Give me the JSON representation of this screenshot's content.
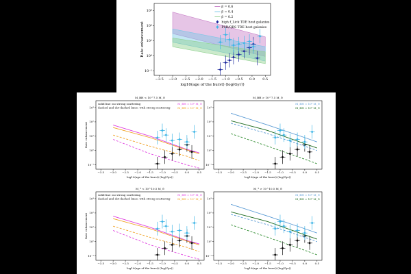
{
  "figure": {
    "background": "#000000",
    "panel_background": "#ffffff"
  },
  "chart_data": [
    {
      "id": "top",
      "type": "line",
      "title": "",
      "xlabel": "log10(age of the burst) (log(Gyr))",
      "ylabel": "Rate enhancement",
      "xlim": [
        -3.7,
        0.7
      ],
      "ylim": [
        0.05,
        3000
      ],
      "yscale": "log",
      "xticks": [
        -3.5,
        -3.0,
        -2.5,
        -2.0,
        -1.5,
        -1.0,
        -0.5,
        0.0,
        0.5
      ],
      "xtick_labels": [
        "−3.5",
        "−3.0",
        "−2.5",
        "−2.0",
        "−1.5",
        "−1.0",
        "−0.5",
        "0.0",
        "0.5"
      ],
      "yticks": [
        0.1,
        1,
        10,
        100,
        1000
      ],
      "ytick_labels": [
        "10⁻¹",
        "10⁰",
        "10¹",
        "10²",
        "10³"
      ],
      "legend": {
        "placement": "top-right",
        "entries": [
          "β = 0.6",
          "β = 0.4",
          "β = 0.2",
          "high f_Lick TDE host galaxies",
          "PSB/QBS TDE host galaxies"
        ]
      },
      "bands": [
        {
          "name": "β = 0.6",
          "color": "#c77fc7",
          "x": [
            -3.0,
            0.5
          ],
          "lower": [
            30,
            0.9
          ],
          "upper": [
            800,
            18
          ]
        },
        {
          "name": "β = 0.4",
          "color": "#79c7e6",
          "x": [
            -3.0,
            0.5
          ],
          "lower": [
            8,
            0.45
          ],
          "upper": [
            60,
            4
          ]
        },
        {
          "name": "β = 0.2",
          "color": "#8fd08f",
          "x": [
            -3.0,
            0.5
          ],
          "lower": [
            4,
            0.3
          ],
          "upper": [
            15,
            1.8
          ]
        }
      ],
      "series": [
        {
          "name": "high f_Lick TDE host galaxies",
          "marker": "diamond",
          "color": "#1f2a9e",
          "x": [
            -1.2,
            -1.0,
            -0.85,
            -0.7,
            -0.5,
            -0.3,
            -0.1,
            0.05,
            0.2
          ],
          "y": [
            0.12,
            0.35,
            0.5,
            0.8,
            1.2,
            2,
            3.5,
            6,
            0.7
          ]
        },
        {
          "name": "PSB/QBS TDE host galaxies",
          "marker": "diamond",
          "color": "#3fb6e6",
          "x": [
            -1.2,
            -1.0,
            -0.85,
            -0.7,
            -0.5,
            -0.3,
            -0.1,
            0.05,
            0.3
          ],
          "y": [
            8,
            25,
            12,
            5,
            6,
            7,
            9,
            4,
            20
          ]
        }
      ]
    },
    {
      "id": "mid-left",
      "type": "line",
      "title": "M_BH < 10^7.5 M_⊙",
      "xlabel": "log10(age of the burst) (log(Gyr))",
      "ylabel": "Rate enhancement",
      "xlim": [
        -3.7,
        0.7
      ],
      "ylim": [
        0.05,
        3000
      ],
      "yscale": "log",
      "xticks": [
        -3.5,
        -3.0,
        -2.5,
        -2.0,
        -1.5,
        -1.0,
        -0.5,
        0.0,
        0.5
      ],
      "xtick_labels": [
        "−3.5",
        "−3.0",
        "−2.5",
        "−2.0",
        "−1.5",
        "−1.0",
        "−0.5",
        "0.0",
        "0.5"
      ],
      "yticks": [
        0.1,
        1,
        10,
        100,
        1000
      ],
      "ytick_labels": [
        "10⁻¹",
        "10⁰",
        "10¹",
        "10²",
        "10³"
      ],
      "annotations": [
        "solid line: no strong scattering",
        "dashed and dot-dashed lines: with strong scattering"
      ],
      "legend": {
        "placement": "top-right",
        "entries": [
          "M_BH = 10⁶ M_⊙",
          "M_BH = 10⁷ M_⊙"
        ]
      },
      "lines": [
        {
          "name": "10⁶ solid",
          "color": "#e040e0",
          "style": "solid",
          "x": [
            -3.0,
            -1.5,
            0.0,
            0.5
          ],
          "y": [
            60,
            10,
            1.2,
            0.7
          ]
        },
        {
          "name": "10⁶ dashed",
          "color": "#e040e0",
          "style": "dashed",
          "x": [
            -3.0,
            -1.5,
            0.0,
            0.5
          ],
          "y": [
            6,
            0.6,
            0.1,
            0.06
          ]
        },
        {
          "name": "10⁷ solid",
          "color": "#f0a020",
          "style": "solid",
          "x": [
            -3.0,
            -1.5,
            0.0,
            0.5
          ],
          "y": [
            40,
            8,
            1.1,
            0.6
          ]
        },
        {
          "name": "10⁷ dashed",
          "color": "#f0a020",
          "style": "dashed",
          "x": [
            -3.0,
            -1.5,
            0.0,
            0.5
          ],
          "y": [
            12,
            2,
            0.4,
            0.2
          ]
        }
      ],
      "series": [
        {
          "name": "high f_Lick",
          "color": "#111111",
          "x": [
            -1.2,
            -0.9,
            -0.6,
            -0.3,
            0.0,
            0.2
          ],
          "y": [
            0.12,
            0.35,
            0.6,
            1.2,
            2.5,
            0.8
          ]
        },
        {
          "name": "PSB/QBS",
          "color": "#3fb6e6",
          "x": [
            -1.2,
            -1.0,
            -0.85,
            -0.6,
            -0.3,
            0.0,
            0.3
          ],
          "y": [
            8,
            25,
            12,
            5,
            6,
            4,
            20
          ]
        }
      ]
    },
    {
      "id": "mid-right",
      "type": "line",
      "title": "M_BH > 10^7.5 M_⊙",
      "xlabel": "log10(age of the burst) (log(Gyr))",
      "ylabel": "",
      "xlim": [
        -3.7,
        0.7
      ],
      "ylim": [
        0.05,
        3000
      ],
      "yscale": "log",
      "xticks": [
        -3.5,
        -3.0,
        -2.5,
        -2.0,
        -1.5,
        -1.0,
        -0.5,
        0.0,
        0.5
      ],
      "xtick_labels": [
        "−3.5",
        "−3.0",
        "−2.5",
        "−2.0",
        "−1.5",
        "−1.0",
        "−0.5",
        "0.0",
        "0.5"
      ],
      "yticks": [
        0.1,
        1,
        10,
        100,
        1000
      ],
      "ytick_labels": [
        "10⁻¹",
        "10⁰",
        "10¹",
        "10²",
        "10³"
      ],
      "legend": {
        "placement": "top-right",
        "entries": [
          "M_BH = 10⁸ M_⊙",
          "M_BH = 10⁹ M_⊙"
        ]
      },
      "lines": [
        {
          "name": "10⁸ solid",
          "color": "#5b9bd5",
          "style": "solid",
          "x": [
            -3.0,
            -1.5,
            0.0,
            0.5
          ],
          "y": [
            400,
            60,
            8,
            4
          ]
        },
        {
          "name": "10⁸ dashed",
          "color": "#5b9bd5",
          "style": "dashed",
          "x": [
            -3.0,
            -1.5,
            0.0,
            0.5
          ],
          "y": [
            80,
            15,
            2,
            1
          ]
        },
        {
          "name": "10⁹ solid",
          "color": "#1e6b1e",
          "style": "solid",
          "x": [
            -3.0,
            -1.5,
            0.0,
            0.5
          ],
          "y": [
            120,
            25,
            3,
            1.5
          ]
        },
        {
          "name": "10⁹ dashed",
          "color": "#2e8b2e",
          "style": "dashed",
          "x": [
            -3.0,
            -1.5,
            0.0,
            0.5
          ],
          "y": [
            15,
            2,
            0.25,
            0.12
          ]
        }
      ],
      "series": [
        {
          "name": "high f_Lick",
          "color": "#111111",
          "x": [
            -1.2,
            -0.9,
            -0.6,
            -0.3,
            0.0,
            0.2
          ],
          "y": [
            0.12,
            0.35,
            0.6,
            1.2,
            2.5,
            0.8
          ]
        },
        {
          "name": "PSB/QBS",
          "color": "#3fb6e6",
          "x": [
            -1.2,
            -1.0,
            -0.85,
            -0.6,
            -0.3,
            0.0,
            0.3
          ],
          "y": [
            8,
            25,
            12,
            5,
            6,
            4,
            20
          ]
        }
      ]
    },
    {
      "id": "bot-left",
      "type": "line",
      "title": "M_* < 10^10.5 M_⊙",
      "xlabel": "log10(age of the burst) (log(Gyr))",
      "ylabel": "Rate enhancement",
      "xlim": [
        -3.7,
        0.7
      ],
      "ylim": [
        0.05,
        3000
      ],
      "yscale": "log",
      "xticks": [
        -3.5,
        -3.0,
        -2.5,
        -2.0,
        -1.5,
        -1.0,
        -0.5,
        0.0,
        0.5
      ],
      "xtick_labels": [
        "−3.5",
        "−3.0",
        "−2.5",
        "−2.0",
        "−1.5",
        "−1.0",
        "−0.5",
        "0.0",
        "0.5"
      ],
      "yticks": [
        0.1,
        1,
        10,
        100,
        1000
      ],
      "ytick_labels": [
        "10⁻¹",
        "10⁰",
        "10¹",
        "10²",
        "10³"
      ],
      "annotations": [
        "solid line: no strong scattering",
        "dashed and dot-dashed lines: with strong scattering"
      ],
      "legend": {
        "placement": "top-right",
        "entries": [
          "M_BH = 10⁶ M_⊙",
          "M_BH = 10⁷ M_⊙"
        ]
      },
      "lines": [
        {
          "name": "10⁶ solid",
          "color": "#e040e0",
          "style": "solid",
          "x": [
            -3.0,
            -1.5,
            0.0,
            0.5
          ],
          "y": [
            60,
            10,
            1.2,
            0.7
          ]
        },
        {
          "name": "10⁶ dashed",
          "color": "#e040e0",
          "style": "dashed",
          "x": [
            -3.0,
            -1.5,
            0.0,
            0.5
          ],
          "y": [
            6,
            0.6,
            0.1,
            0.06
          ]
        },
        {
          "name": "10⁷ solid",
          "color": "#f0a020",
          "style": "solid",
          "x": [
            -3.0,
            -1.5,
            0.0,
            0.5
          ],
          "y": [
            40,
            8,
            1.1,
            0.6
          ]
        },
        {
          "name": "10⁷ dashed",
          "color": "#f0a020",
          "style": "dashed",
          "x": [
            -3.0,
            -1.5,
            0.0,
            0.5
          ],
          "y": [
            12,
            2,
            0.4,
            0.2
          ]
        }
      ],
      "series": [
        {
          "name": "high f_Lick",
          "color": "#111111",
          "x": [
            -1.2,
            -0.9,
            -0.6,
            -0.3,
            0.0,
            0.2
          ],
          "y": [
            0.12,
            0.35,
            0.6,
            1.2,
            2.5,
            0.8
          ]
        },
        {
          "name": "PSB/QBS",
          "color": "#3fb6e6",
          "x": [
            -1.2,
            -1.0,
            -0.85,
            -0.6,
            -0.3,
            0.0,
            0.3
          ],
          "y": [
            8,
            25,
            12,
            5,
            6,
            4,
            20
          ]
        }
      ]
    },
    {
      "id": "bot-right",
      "type": "line",
      "title": "M_* > 10^10.5 M_⊙",
      "xlabel": "log10(age of the burst) (log(Gyr))",
      "ylabel": "",
      "xlim": [
        -3.7,
        0.7
      ],
      "ylim": [
        0.05,
        3000
      ],
      "yscale": "log",
      "xticks": [
        -3.5,
        -3.0,
        -2.5,
        -2.0,
        -1.5,
        -1.0,
        -0.5,
        0.0,
        0.5
      ],
      "xtick_labels": [
        "−3.5",
        "−3.0",
        "−2.5",
        "−2.0",
        "−1.5",
        "−1.0",
        "−0.5",
        "0.0",
        "0.5"
      ],
      "yticks": [
        0.1,
        1,
        10,
        100,
        1000
      ],
      "ytick_labels": [
        "10⁻¹",
        "10⁰",
        "10¹",
        "10²",
        "10³"
      ],
      "legend": {
        "placement": "top-right",
        "entries": [
          "M_BH = 10⁸ M_⊙",
          "M_BH = 10⁹ M_⊙"
        ]
      },
      "lines": [
        {
          "name": "10⁸ solid",
          "color": "#5b9bd5",
          "style": "solid",
          "x": [
            -3.0,
            -1.5,
            0.0,
            0.5
          ],
          "y": [
            400,
            60,
            8,
            4
          ]
        },
        {
          "name": "10⁸ dashed",
          "color": "#5b9bd5",
          "style": "dashed",
          "x": [
            -3.0,
            -1.5,
            0.0,
            0.5
          ],
          "y": [
            80,
            15,
            2,
            1
          ]
        },
        {
          "name": "10⁹ solid",
          "color": "#1e6b1e",
          "style": "solid",
          "x": [
            -3.0,
            -1.5,
            0.0,
            0.5
          ],
          "y": [
            120,
            25,
            3,
            1.5
          ]
        },
        {
          "name": "10⁹ dashed",
          "color": "#2e8b2e",
          "style": "dashed",
          "x": [
            -3.0,
            -1.5,
            0.0,
            0.5
          ],
          "y": [
            15,
            2,
            0.25,
            0.12
          ]
        }
      ],
      "series": [
        {
          "name": "high f_Lick",
          "color": "#111111",
          "x": [
            -1.2,
            -0.9,
            -0.6,
            -0.3,
            0.0,
            0.2
          ],
          "y": [
            0.12,
            0.35,
            0.6,
            1.2,
            2.5,
            0.8
          ]
        },
        {
          "name": "PSB/QBS",
          "color": "#3fb6e6",
          "x": [
            -1.2,
            -1.0,
            -0.85,
            -0.6,
            -0.3,
            0.0,
            0.3
          ],
          "y": [
            8,
            25,
            12,
            5,
            6,
            4,
            20
          ]
        }
      ]
    }
  ]
}
